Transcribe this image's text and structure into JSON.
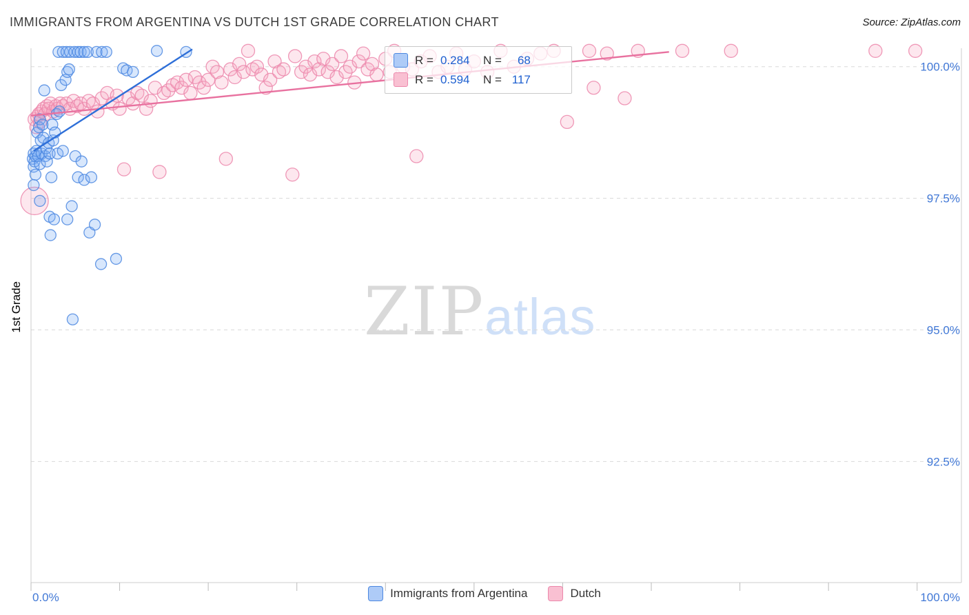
{
  "page": {
    "title": "IMMIGRANTS FROM ARGENTINA VS DUTCH 1ST GRADE CORRELATION CHART",
    "source": "Source: ZipAtlas.com"
  },
  "watermark": {
    "zip": "ZIP",
    "atlas": "atlas"
  },
  "legend_box": {
    "rows": [
      {
        "r_label": "R =",
        "r_value": "0.284",
        "n_label": "N =",
        "n_value": "68"
      },
      {
        "r_label": "R =",
        "r_value": "0.594",
        "n_label": "N =",
        "n_value": "117"
      }
    ]
  },
  "bottom_legend": {
    "items": [
      {
        "label": "Immigrants from Argentina"
      },
      {
        "label": "Dutch"
      }
    ]
  },
  "chart_data": {
    "type": "scatter",
    "title": "IMMIGRANTS FROM ARGENTINA VS DUTCH 1ST GRADE CORRELATION CHART",
    "xlabel": "",
    "ylabel": "1st Grade",
    "xlim": [
      0,
      105
    ],
    "ylim": [
      90.2,
      100.35
    ],
    "grid": "horizontal-dashed",
    "legend_position": "top-center-box and bottom-center",
    "x_axis": {
      "min_label": "0.0%",
      "max_label": "100.0%",
      "tick_step": 10
    },
    "y_ticks": [
      {
        "value": 100.0,
        "label": "100.0%"
      },
      {
        "value": 97.5,
        "label": "97.5%"
      },
      {
        "value": 95.0,
        "label": "95.0%"
      },
      {
        "value": 92.5,
        "label": "92.5%"
      }
    ],
    "series": [
      {
        "id": "argentina",
        "name": "Immigrants from Argentina",
        "R": 0.284,
        "N": 68,
        "fill": "#7fb1f5",
        "fill_opacity": 0.3,
        "stroke": "#4b87e0",
        "swatch_fill": "#aecbf7",
        "line_color": "#2e6fd8",
        "marker_radius": 8,
        "trend": {
          "x1": 0.3,
          "y1": 98.4,
          "x2": 18.2,
          "y2": 100.33
        },
        "points": [
          [
            0.2,
            98.25
          ],
          [
            0.3,
            98.1
          ],
          [
            0.3,
            98.35
          ],
          [
            0.4,
            98.2
          ],
          [
            0.5,
            98.3
          ],
          [
            0.5,
            97.95
          ],
          [
            0.3,
            97.75
          ],
          [
            0.6,
            98.4
          ],
          [
            0.7,
            98.75
          ],
          [
            0.8,
            98.3
          ],
          [
            0.9,
            98.85
          ],
          [
            1.0,
            99.0
          ],
          [
            1.1,
            98.6
          ],
          [
            1.2,
            98.35
          ],
          [
            1.0,
            98.15
          ],
          [
            1.3,
            98.9
          ],
          [
            1.4,
            98.65
          ],
          [
            1.5,
            99.55
          ],
          [
            1.6,
            98.3
          ],
          [
            1.7,
            98.45
          ],
          [
            1.8,
            98.2
          ],
          [
            2.0,
            98.55
          ],
          [
            2.1,
            98.35
          ],
          [
            2.2,
            96.8
          ],
          [
            2.3,
            97.9
          ],
          [
            2.4,
            98.9
          ],
          [
            2.5,
            98.6
          ],
          [
            2.7,
            98.75
          ],
          [
            2.9,
            99.1
          ],
          [
            3.0,
            98.35
          ],
          [
            3.2,
            99.15
          ],
          [
            3.4,
            99.65
          ],
          [
            3.6,
            98.4
          ],
          [
            3.9,
            99.75
          ],
          [
            4.1,
            99.9
          ],
          [
            4.3,
            99.95
          ],
          [
            4.1,
            97.1
          ],
          [
            4.6,
            97.35
          ],
          [
            4.7,
            95.2
          ],
          [
            5.0,
            98.3
          ],
          [
            5.3,
            97.9
          ],
          [
            5.7,
            98.2
          ],
          [
            6.0,
            97.85
          ],
          [
            6.6,
            96.85
          ],
          [
            7.9,
            96.25
          ],
          [
            9.6,
            96.35
          ],
          [
            1.0,
            97.45
          ],
          [
            2.1,
            97.15
          ],
          [
            2.6,
            97.1
          ],
          [
            3.1,
            100.28
          ],
          [
            3.6,
            100.28
          ],
          [
            4.0,
            100.28
          ],
          [
            4.4,
            100.28
          ],
          [
            4.9,
            100.28
          ],
          [
            5.3,
            100.28
          ],
          [
            5.6,
            100.28
          ],
          [
            6.0,
            100.28
          ],
          [
            6.4,
            100.28
          ],
          [
            7.4,
            100.28
          ],
          [
            8.0,
            100.28
          ],
          [
            8.5,
            100.28
          ],
          [
            14.2,
            100.3
          ],
          [
            17.5,
            100.28
          ],
          [
            10.4,
            99.97
          ],
          [
            10.8,
            99.93
          ],
          [
            11.5,
            99.9
          ],
          [
            6.8,
            97.9
          ],
          [
            7.2,
            97.0
          ]
        ]
      },
      {
        "id": "dutch",
        "name": "Dutch",
        "R": 0.594,
        "N": 117,
        "fill": "#f8a8c2",
        "fill_opacity": 0.28,
        "stroke": "#ec87ab",
        "swatch_fill": "#f9c0d2",
        "line_color": "#e8719f",
        "marker_radius": 9.5,
        "trend": {
          "x1": 0.0,
          "y1": 99.07,
          "x2": 72.0,
          "y2": 100.28
        },
        "points": [
          [
            0.4,
            97.45,
            20
          ],
          [
            0.4,
            99.0
          ],
          [
            0.6,
            98.85
          ],
          [
            0.7,
            99.05
          ],
          [
            0.9,
            99.1
          ],
          [
            1.0,
            98.95
          ],
          [
            1.2,
            99.15
          ],
          [
            1.4,
            99.2
          ],
          [
            1.6,
            99.1
          ],
          [
            1.8,
            99.25
          ],
          [
            2.0,
            99.2
          ],
          [
            2.2,
            99.3
          ],
          [
            2.5,
            99.15
          ],
          [
            2.8,
            99.25
          ],
          [
            3.0,
            99.2
          ],
          [
            3.3,
            99.3
          ],
          [
            3.6,
            99.25
          ],
          [
            4.0,
            99.3
          ],
          [
            4.4,
            99.2
          ],
          [
            4.8,
            99.35
          ],
          [
            5.2,
            99.25
          ],
          [
            5.6,
            99.3
          ],
          [
            6.0,
            99.2
          ],
          [
            6.5,
            99.35
          ],
          [
            7.0,
            99.3
          ],
          [
            7.5,
            99.15
          ],
          [
            8.0,
            99.4
          ],
          [
            8.6,
            99.5
          ],
          [
            9.2,
            99.3
          ],
          [
            9.7,
            99.45
          ],
          [
            10.0,
            99.2
          ],
          [
            10.5,
            98.05
          ],
          [
            11.0,
            99.4
          ],
          [
            11.5,
            99.3
          ],
          [
            12.0,
            99.5
          ],
          [
            12.5,
            99.45
          ],
          [
            13.0,
            99.2
          ],
          [
            13.5,
            99.35
          ],
          [
            14.0,
            99.6
          ],
          [
            14.5,
            98.0
          ],
          [
            15.0,
            99.5
          ],
          [
            15.5,
            99.55
          ],
          [
            16.0,
            99.65
          ],
          [
            16.5,
            99.7
          ],
          [
            17.0,
            99.6
          ],
          [
            17.5,
            99.75
          ],
          [
            18.0,
            99.5
          ],
          [
            18.5,
            99.8
          ],
          [
            19.0,
            99.7
          ],
          [
            19.5,
            99.6
          ],
          [
            20.0,
            99.75
          ],
          [
            20.5,
            100.0
          ],
          [
            21.0,
            99.9
          ],
          [
            21.5,
            99.7
          ],
          [
            22.0,
            98.25
          ],
          [
            22.5,
            99.95
          ],
          [
            23.0,
            99.8
          ],
          [
            23.5,
            100.05
          ],
          [
            24.0,
            99.9
          ],
          [
            24.5,
            100.3
          ],
          [
            25.0,
            99.95
          ],
          [
            25.5,
            100.0
          ],
          [
            26.0,
            99.85
          ],
          [
            26.5,
            99.6
          ],
          [
            27.0,
            99.75
          ],
          [
            27.5,
            100.1
          ],
          [
            28.0,
            99.9
          ],
          [
            28.5,
            99.95
          ],
          [
            29.5,
            97.95
          ],
          [
            29.8,
            100.2
          ],
          [
            30.5,
            99.9
          ],
          [
            31.0,
            100.0
          ],
          [
            31.5,
            99.85
          ],
          [
            32.0,
            100.1
          ],
          [
            32.5,
            99.95
          ],
          [
            33.0,
            100.15
          ],
          [
            33.5,
            99.9
          ],
          [
            34.0,
            100.05
          ],
          [
            34.5,
            99.8
          ],
          [
            35.0,
            100.2
          ],
          [
            35.5,
            99.9
          ],
          [
            36.0,
            100.0
          ],
          [
            36.5,
            99.7
          ],
          [
            37.0,
            100.1
          ],
          [
            37.5,
            100.25
          ],
          [
            38.0,
            99.95
          ],
          [
            38.5,
            100.05
          ],
          [
            39.0,
            99.85
          ],
          [
            40.0,
            100.15
          ],
          [
            40.5,
            99.9
          ],
          [
            41.0,
            100.3
          ],
          [
            42.0,
            100.0
          ],
          [
            43.0,
            99.95
          ],
          [
            43.5,
            98.3
          ],
          [
            44.0,
            100.1
          ],
          [
            45.0,
            100.2
          ],
          [
            46.0,
            99.9
          ],
          [
            47.0,
            100.0
          ],
          [
            48.0,
            100.25
          ],
          [
            49.0,
            99.95
          ],
          [
            50.0,
            100.1
          ],
          [
            51.5,
            99.9
          ],
          [
            53.0,
            100.3
          ],
          [
            54.5,
            100.0
          ],
          [
            56.0,
            100.15
          ],
          [
            57.5,
            100.25
          ],
          [
            59.0,
            100.3
          ],
          [
            60.5,
            98.95
          ],
          [
            99.8,
            100.3
          ],
          [
            63.0,
            100.3
          ],
          [
            63.5,
            99.6
          ],
          [
            65.0,
            100.25
          ],
          [
            67.0,
            99.4
          ],
          [
            68.5,
            100.3
          ],
          [
            73.5,
            100.3
          ],
          [
            79.0,
            100.3
          ],
          [
            95.3,
            100.3
          ]
        ]
      }
    ]
  }
}
